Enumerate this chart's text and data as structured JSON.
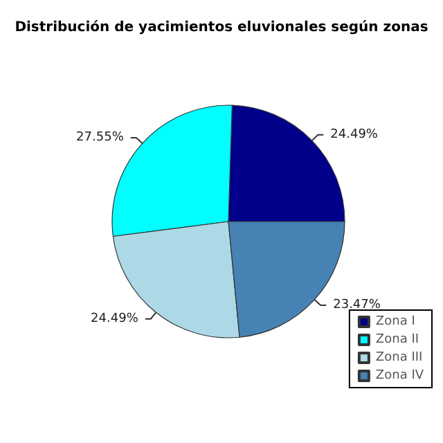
{
  "chart_data": {
    "type": "pie",
    "title": "Distribución de yacimientos eluvionales según zonas",
    "categories": [
      "Zona I",
      "Zona II",
      "Zona III",
      "Zona IV"
    ],
    "values": [
      24.49,
      27.55,
      24.49,
      23.47
    ],
    "value_labels": [
      "24.49%",
      "27.55%",
      "24.49%",
      "23.47%"
    ],
    "colors": [
      "#00008b",
      "#00ffff",
      "#add8e6",
      "#4682b4"
    ],
    "legend": "bottom right"
  }
}
